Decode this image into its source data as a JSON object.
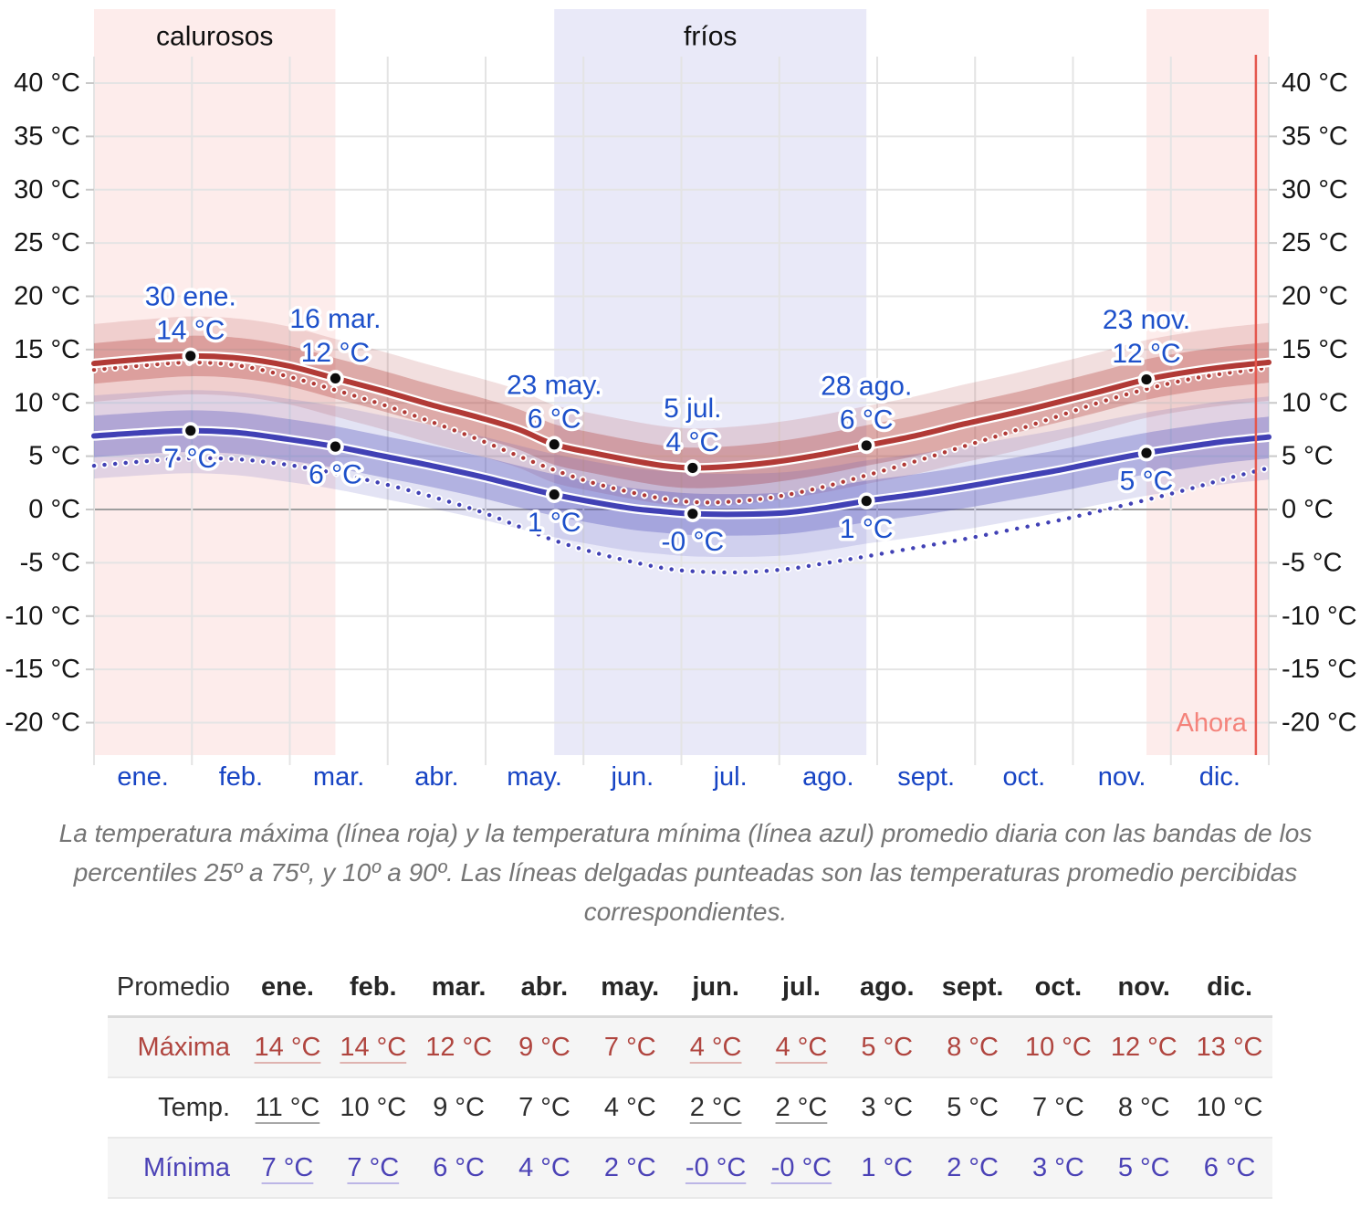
{
  "chart": {
    "season_labels": [
      {
        "text": "calurosos"
      },
      {
        "text": "fríos"
      }
    ],
    "now_label": "Ahora",
    "y_tick_labels": [
      "40 °C",
      "35 °C",
      "30 °C",
      "25 °C",
      "20 °C",
      "15 °C",
      "10 °C",
      "5 °C",
      "0 °C",
      "-5 °C",
      "-10 °C",
      "-15 °C",
      "-20 °C"
    ],
    "months": [
      "ene.",
      "feb.",
      "mar.",
      "abr.",
      "may.",
      "jun.",
      "jul.",
      "ago.",
      "sept.",
      "oct.",
      "nov.",
      "dic."
    ],
    "colors": {
      "max_line": "#b13a36",
      "min_line": "#4141b5",
      "max_band_inner": "rgba(177,58,54,0.32)",
      "max_band_outer": "rgba(177,58,54,0.16)",
      "min_band_inner": "rgba(65,65,181,0.30)",
      "min_band_outer": "rgba(65,65,181,0.15)",
      "hot_season_fill": "rgba(240,128,118,0.15)",
      "cold_season_fill": "rgba(122,122,214,0.17)",
      "now_line": "#e4574e",
      "now_label": "#f4837b",
      "grid": "#e4e4e4",
      "zero_line": "#9e9e9e",
      "tick": "#c9c9c9",
      "axis_text": "#161616",
      "month_text": "#1744c4",
      "annotation_text": "#1d50ca",
      "dot": "#0d0d0d"
    }
  },
  "chart_data": {
    "type": "line",
    "unit": "°C",
    "ylim": [
      -20,
      40
    ],
    "y_ticks": [
      40,
      35,
      30,
      25,
      20,
      15,
      10,
      5,
      0,
      -5,
      -10,
      -15,
      -20
    ],
    "x_months": [
      "ene.",
      "feb.",
      "mar.",
      "abr.",
      "may.",
      "jun.",
      "jul.",
      "ago.",
      "sept.",
      "oct.",
      "nov.",
      "dic."
    ],
    "seasons": [
      {
        "label": "calurosos",
        "days": [
          0,
          75
        ]
      },
      {
        "label": "fríos",
        "days": [
          143,
          240
        ]
      },
      {
        "label": "calurosos",
        "days": [
          327,
          365
        ]
      }
    ],
    "now_day": 361,
    "series": [
      {
        "key": "maxima",
        "name": "temperatura máxima promedio diaria",
        "style": "solid",
        "color": "#b13a36",
        "points": [
          [
            0,
            13.7
          ],
          [
            15,
            14.1
          ],
          [
            30,
            14.4
          ],
          [
            45,
            14.2
          ],
          [
            60,
            13.5
          ],
          [
            75,
            12.3
          ],
          [
            90,
            11.1
          ],
          [
            105,
            9.8
          ],
          [
            120,
            8.6
          ],
          [
            132,
            7.5
          ],
          [
            143,
            6.1
          ],
          [
            155,
            5.3
          ],
          [
            167,
            4.6
          ],
          [
            177,
            4.1
          ],
          [
            186,
            3.9
          ],
          [
            196,
            4.0
          ],
          [
            210,
            4.4
          ],
          [
            225,
            5.1
          ],
          [
            240,
            6.0
          ],
          [
            255,
            6.9
          ],
          [
            270,
            8.0
          ],
          [
            285,
            9.0
          ],
          [
            300,
            10.1
          ],
          [
            313,
            11.1
          ],
          [
            327,
            12.2
          ],
          [
            340,
            12.9
          ],
          [
            352,
            13.4
          ],
          [
            365,
            13.8
          ]
        ]
      },
      {
        "key": "minima",
        "name": "temperatura mínima promedio diaria",
        "style": "solid",
        "color": "#4141b5",
        "points": [
          [
            0,
            6.9
          ],
          [
            15,
            7.2
          ],
          [
            30,
            7.4
          ],
          [
            45,
            7.2
          ],
          [
            60,
            6.6
          ],
          [
            75,
            5.9
          ],
          [
            90,
            5.0
          ],
          [
            105,
            4.1
          ],
          [
            120,
            3.1
          ],
          [
            132,
            2.2
          ],
          [
            143,
            1.4
          ],
          [
            155,
            0.7
          ],
          [
            167,
            0.1
          ],
          [
            177,
            -0.2
          ],
          [
            186,
            -0.4
          ],
          [
            200,
            -0.45
          ],
          [
            215,
            -0.3
          ],
          [
            228,
            0.2
          ],
          [
            240,
            0.8
          ],
          [
            255,
            1.4
          ],
          [
            270,
            2.1
          ],
          [
            285,
            2.9
          ],
          [
            300,
            3.7
          ],
          [
            313,
            4.5
          ],
          [
            327,
            5.3
          ],
          [
            340,
            5.9
          ],
          [
            352,
            6.4
          ],
          [
            365,
            6.8
          ]
        ]
      },
      {
        "key": "maxima_percibida",
        "name": "temperatura máxima percibida promedio",
        "style": "dotted",
        "color": "#b13a36",
        "points": [
          [
            0,
            13.1
          ],
          [
            15,
            13.5
          ],
          [
            30,
            13.8
          ],
          [
            45,
            13.5
          ],
          [
            60,
            12.5
          ],
          [
            75,
            11.2
          ],
          [
            90,
            9.8
          ],
          [
            105,
            8.2
          ],
          [
            120,
            6.5
          ],
          [
            132,
            5.0
          ],
          [
            143,
            3.7
          ],
          [
            155,
            2.5
          ],
          [
            167,
            1.6
          ],
          [
            177,
            1.0
          ],
          [
            186,
            0.7
          ],
          [
            196,
            0.7
          ],
          [
            210,
            1.1
          ],
          [
            225,
            2.0
          ],
          [
            240,
            3.2
          ],
          [
            255,
            4.5
          ],
          [
            270,
            5.9
          ],
          [
            285,
            7.3
          ],
          [
            300,
            8.8
          ],
          [
            313,
            10.1
          ],
          [
            327,
            11.3
          ],
          [
            340,
            12.2
          ],
          [
            352,
            12.8
          ],
          [
            365,
            13.3
          ]
        ]
      },
      {
        "key": "minima_percibida",
        "name": "temperatura mínima percibida promedio",
        "style": "dotted",
        "color": "#4141b5",
        "points": [
          [
            0,
            4.1
          ],
          [
            15,
            4.5
          ],
          [
            30,
            4.8
          ],
          [
            45,
            4.7
          ],
          [
            60,
            4.2
          ],
          [
            75,
            3.4
          ],
          [
            90,
            2.4
          ],
          [
            105,
            1.2
          ],
          [
            120,
            -0.2
          ],
          [
            132,
            -1.6
          ],
          [
            143,
            -2.9
          ],
          [
            155,
            -4.0
          ],
          [
            167,
            -4.9
          ],
          [
            177,
            -5.5
          ],
          [
            186,
            -5.8
          ],
          [
            200,
            -5.9
          ],
          [
            215,
            -5.6
          ],
          [
            228,
            -5.0
          ],
          [
            240,
            -4.4
          ],
          [
            255,
            -3.6
          ],
          [
            270,
            -2.8
          ],
          [
            285,
            -1.9
          ],
          [
            300,
            -1.0
          ],
          [
            313,
            -0.1
          ],
          [
            327,
            0.9
          ],
          [
            340,
            1.9
          ],
          [
            352,
            2.9
          ],
          [
            365,
            3.9
          ]
        ]
      }
    ],
    "percentile_bands": [
      {
        "series": "maxima",
        "percentile": "10–90",
        "offset_upper": 3.7,
        "offset_lower": 3.6,
        "fill": "rgba(177,58,54,0.16)"
      },
      {
        "series": "maxima",
        "percentile": "25–75",
        "offset_upper": 1.9,
        "offset_lower": 1.9,
        "fill": "rgba(177,58,54,0.32)"
      },
      {
        "series": "minima",
        "percentile": "10–90",
        "offset_upper": 3.8,
        "offset_lower": 4.0,
        "fill": "rgba(65,65,181,0.15)"
      },
      {
        "series": "minima",
        "percentile": "25–75",
        "offset_upper": 1.9,
        "offset_lower": 2.0,
        "fill": "rgba(65,65,181,0.30)"
      }
    ],
    "annotations_max": [
      {
        "date": "30 ene.",
        "temp": "14 °C",
        "day": 30,
        "value": 14.4
      },
      {
        "date": "16 mar.",
        "temp": "12 °C",
        "day": 75,
        "value": 12.3
      },
      {
        "date": "23 may.",
        "temp": "6 °C",
        "day": 143,
        "value": 6.1
      },
      {
        "date": "5 jul.",
        "temp": "4 °C",
        "day": 186,
        "value": 3.9
      },
      {
        "date": "28 ago.",
        "temp": "6 °C",
        "day": 240,
        "value": 6.0
      },
      {
        "date": "23 nov.",
        "temp": "12 °C",
        "day": 327,
        "value": 12.2
      }
    ],
    "annotations_min": [
      {
        "temp": "7 °C",
        "day": 30,
        "value": 7.4
      },
      {
        "temp": "6 °C",
        "day": 75,
        "value": 5.9
      },
      {
        "temp": "1 °C",
        "day": 143,
        "value": 1.4
      },
      {
        "temp": "-0 °C",
        "day": 186,
        "value": -0.4
      },
      {
        "temp": "1 °C",
        "day": 240,
        "value": 0.8
      },
      {
        "temp": "5 °C",
        "day": 327,
        "value": 5.3
      }
    ]
  },
  "caption": "La temperatura máxima (línea roja) y la temperatura mínima (línea azul) promedio diaria con las bandas de los percentiles 25º a 75º, y 10º a 90º. Las líneas delgadas punteadas son las temperaturas promedio percibidas correspondientes.",
  "table": {
    "corner_label": "Promedio",
    "months": [
      "ene.",
      "feb.",
      "mar.",
      "abr.",
      "may.",
      "jun.",
      "jul.",
      "ago.",
      "sept.",
      "oct.",
      "nov.",
      "dic."
    ],
    "rows": [
      {
        "key": "maxima",
        "label": "Máxima",
        "color": "#b0453f",
        "underline_color": "#dfb3b0",
        "shaded": true,
        "values": [
          {
            "text": "14 °C",
            "link": true
          },
          {
            "text": "14 °C",
            "link": true
          },
          {
            "text": "12 °C",
            "link": false
          },
          {
            "text": "9 °C",
            "link": false
          },
          {
            "text": "7 °C",
            "link": false
          },
          {
            "text": "4 °C",
            "link": true
          },
          {
            "text": "4 °C",
            "link": true
          },
          {
            "text": "5 °C",
            "link": false
          },
          {
            "text": "8 °C",
            "link": false
          },
          {
            "text": "10 °C",
            "link": false
          },
          {
            "text": "12 °C",
            "link": false
          },
          {
            "text": "13 °C",
            "link": false
          }
        ]
      },
      {
        "key": "temp",
        "label": "Temp.",
        "color": "#2e2e2e",
        "underline_color": "#a8a8a8",
        "shaded": false,
        "values": [
          {
            "text": "11 °C",
            "link": true
          },
          {
            "text": "10 °C",
            "link": false
          },
          {
            "text": "9 °C",
            "link": false
          },
          {
            "text": "7 °C",
            "link": false
          },
          {
            "text": "4 °C",
            "link": false
          },
          {
            "text": "2 °C",
            "link": true
          },
          {
            "text": "2 °C",
            "link": true
          },
          {
            "text": "3 °C",
            "link": false
          },
          {
            "text": "5 °C",
            "link": false
          },
          {
            "text": "7 °C",
            "link": false
          },
          {
            "text": "8 °C",
            "link": false
          },
          {
            "text": "10 °C",
            "link": false
          }
        ]
      },
      {
        "key": "minima",
        "label": "Mínima",
        "color": "#4b42b6",
        "underline_color": "#bcb6e6",
        "shaded": true,
        "values": [
          {
            "text": "7 °C",
            "link": true
          },
          {
            "text": "7 °C",
            "link": true
          },
          {
            "text": "6 °C",
            "link": false
          },
          {
            "text": "4 °C",
            "link": false
          },
          {
            "text": "2 °C",
            "link": false
          },
          {
            "text": "-0 °C",
            "link": true
          },
          {
            "text": "-0 °C",
            "link": true
          },
          {
            "text": "1 °C",
            "link": false
          },
          {
            "text": "2 °C",
            "link": false
          },
          {
            "text": "3 °C",
            "link": false
          },
          {
            "text": "5 °C",
            "link": false
          },
          {
            "text": "6 °C",
            "link": false
          }
        ]
      }
    ]
  }
}
